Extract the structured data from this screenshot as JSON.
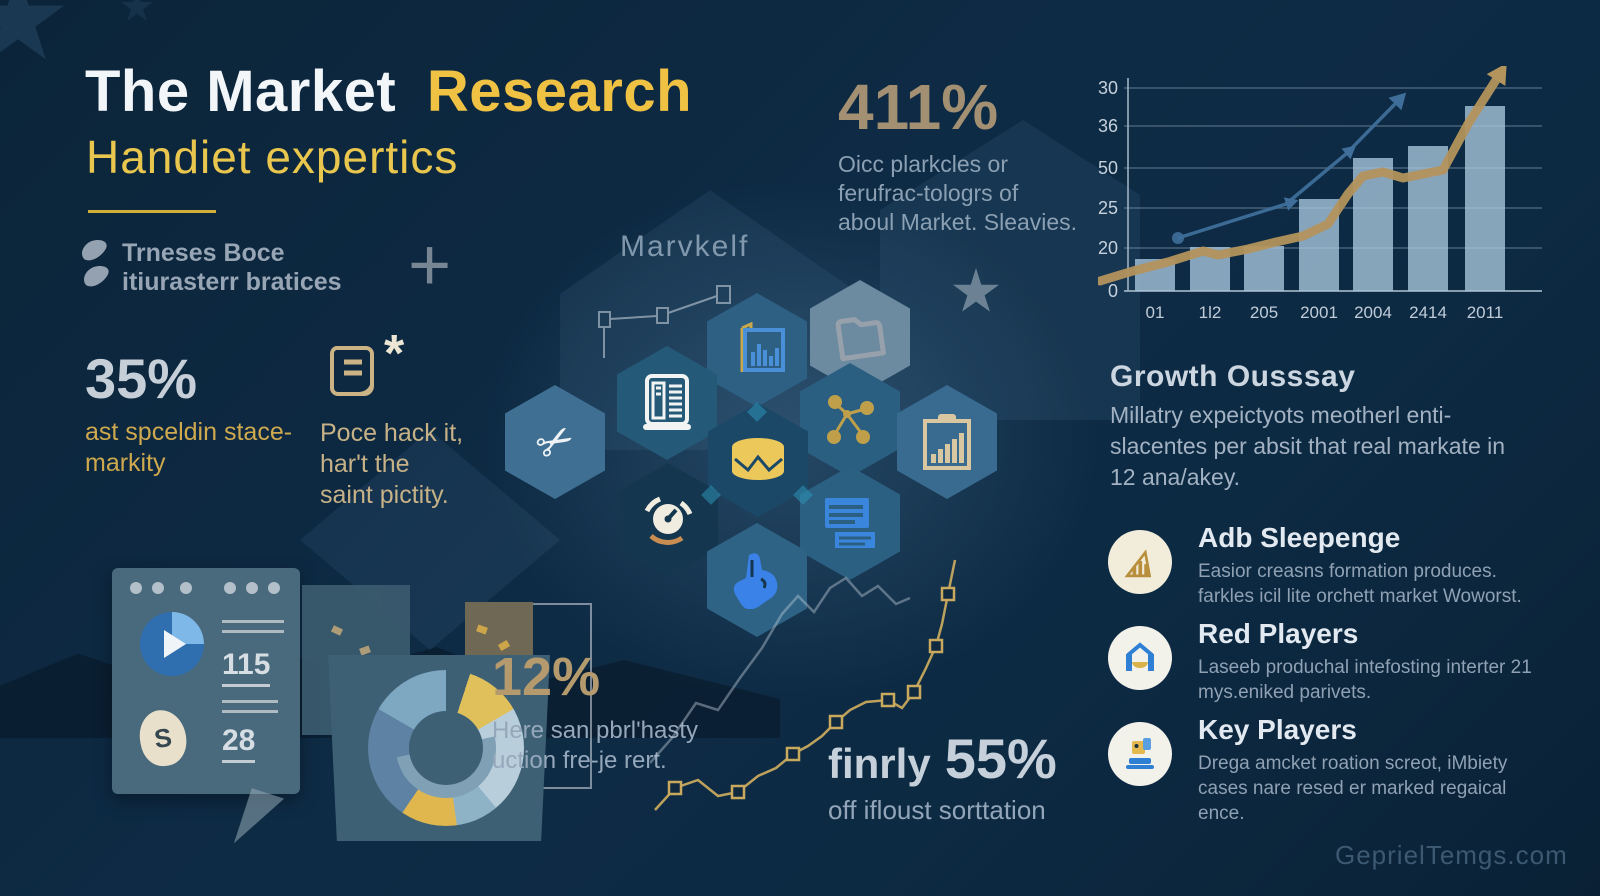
{
  "header": {
    "title_white": "The Market",
    "title_gold": "Research",
    "subtitle": "Handiet expertics"
  },
  "brand": {
    "icon": "logo-squiggle-icon",
    "line1": "Trneses Boce",
    "line2": "itiurasterr bratices"
  },
  "glyphs": {
    "plus": "+",
    "asterisk": "*",
    "scissors": "✂"
  },
  "stats": {
    "pct411": {
      "value": "411%",
      "lines": [
        "Oicc plarkcles or",
        "ferufrac-tologrs of",
        "aboul Market. Sleavies."
      ]
    },
    "pct35": {
      "value": "35%",
      "lines": [
        "ast spceldin stace-",
        "markity"
      ]
    },
    "note": {
      "icon": "document-asterisk-icon",
      "lines": [
        "Poce hack it,",
        "har't the",
        "saint pictity."
      ]
    },
    "pct12": {
      "value": "12%",
      "lines": [
        "Here san pbrl'hasty",
        "uction fre-je rert."
      ]
    },
    "pct55": {
      "prefix": "finrly",
      "value": "55%",
      "caption": "off ifloust sorttation"
    }
  },
  "center": {
    "label": "Marvkelf",
    "hex_icons": [
      "scissors-icon",
      "server-icon",
      "chart-document-icon",
      "folder-icon",
      "network-icon",
      "database-icon",
      "clipboard-chart-icon",
      "gauge-icon",
      "documents-icon",
      "hand-icon"
    ]
  },
  "dashboard": {
    "icon": "play-icon",
    "stat1": "115",
    "stat2": "28",
    "currency": "S"
  },
  "growth": {
    "heading": "Growth Ousssay",
    "body": "Millatry expeictyots meotherl enti-slacentes per absit that real markate in 12 ana/akey."
  },
  "items": [
    {
      "icon": "growth-bars-icon",
      "title": "Adb Sleepenge",
      "desc": "Easior creasns formation produces. farkles icil lite orchett market Woworst."
    },
    {
      "icon": "house-icon",
      "title": "Red Players",
      "desc": "Laseeb produchal intefosting interter 21 mys.eniked parivets."
    },
    {
      "icon": "robot-icon",
      "title": "Key Players",
      "desc": "Drega amcket roation screot, iMbiety cases nare resed er marked regaical ence."
    }
  ],
  "watermark": "GeprielTemgs.com",
  "colors": {
    "background": "#0d2a43",
    "accent_gold": "#f0c243",
    "muted_gold": "#b3945c",
    "bar_fill": "#a9c6dc",
    "blue_line": "#3e6e99",
    "text_gray": "#9db0c2"
  },
  "chart_data": [
    {
      "type": "bar",
      "name": "growth-chart",
      "categories": [
        "01",
        "1l2",
        "205",
        "2001",
        "2004",
        "2414",
        "2011"
      ],
      "values": [
        32,
        44,
        45,
        92,
        133,
        145,
        185
      ],
      "ylim": [
        0,
        225
      ],
      "ytick_labels": [
        "30",
        "36",
        "50",
        "25",
        "20",
        "0"
      ],
      "grid": true,
      "series": [
        {
          "name": "gold trend line",
          "color": "#b3945c",
          "width": 9,
          "points": [
            [
              2,
              215
            ],
            [
              35,
              205
            ],
            [
              70,
              196
            ],
            [
              105,
              185
            ],
            [
              120,
              189
            ],
            [
              150,
              183
            ],
            [
              178,
              176
            ],
            [
              205,
              170
            ],
            [
              230,
              158
            ],
            [
              250,
              128
            ],
            [
              265,
              110
            ],
            [
              285,
              106
            ],
            [
              305,
              112
            ],
            [
              325,
              108
            ],
            [
              345,
              104
            ],
            [
              370,
              58
            ],
            [
              398,
              14
            ]
          ]
        },
        {
          "name": "blue trend line",
          "color": "#3e6e99",
          "width": 3.5,
          "points": [
            [
              80,
              172
            ],
            [
              188,
              138
            ],
            [
              248,
              88
            ],
            [
              297,
              38
            ]
          ]
        }
      ]
    },
    {
      "type": "line",
      "name": "stepped gold line",
      "color": "#c8a95e",
      "points": [
        [
          5,
          262
        ],
        [
          25,
          240
        ],
        [
          48,
          232
        ],
        [
          68,
          248
        ],
        [
          88,
          244
        ],
        [
          108,
          228
        ],
        [
          126,
          220
        ],
        [
          143,
          206
        ],
        [
          158,
          198
        ],
        [
          172,
          188
        ],
        [
          186,
          174
        ],
        [
          200,
          162
        ],
        [
          216,
          154
        ],
        [
          238,
          152
        ],
        [
          252,
          160
        ],
        [
          264,
          144
        ],
        [
          276,
          120
        ],
        [
          286,
          98
        ],
        [
          292,
          76
        ],
        [
          298,
          46
        ],
        [
          305,
          12
        ]
      ],
      "marker_indexes": [
        1,
        4,
        7,
        10,
        13,
        15,
        17,
        19
      ],
      "backdrop": {
        "name": "gray backdrop line",
        "color": "#b9c6d2",
        "points": [
          [
            0,
            215
          ],
          [
            22,
            190
          ],
          [
            46,
            155
          ],
          [
            68,
            162
          ],
          [
            90,
            130
          ],
          [
            112,
            100
          ],
          [
            132,
            66
          ],
          [
            148,
            48
          ],
          [
            164,
            64
          ],
          [
            180,
            40
          ],
          [
            196,
            30
          ],
          [
            212,
            48
          ],
          [
            228,
            38
          ],
          [
            246,
            56
          ],
          [
            260,
            50
          ]
        ]
      }
    },
    {
      "type": "pie",
      "name": "donut-chart",
      "segments": [
        {
          "color": "#dfc05a",
          "from": 18,
          "to": 60
        },
        {
          "color": "#b9cedb",
          "from": 60,
          "to": 140
        },
        {
          "color": "#8fb3c6",
          "from": 140,
          "to": 172
        },
        {
          "color": "#e0b64e",
          "from": 172,
          "to": 214
        },
        {
          "color": "#5d82a3",
          "from": 214,
          "to": 300
        },
        {
          "color": "#7ea7c2",
          "from": 300,
          "to": 360
        }
      ]
    }
  ]
}
